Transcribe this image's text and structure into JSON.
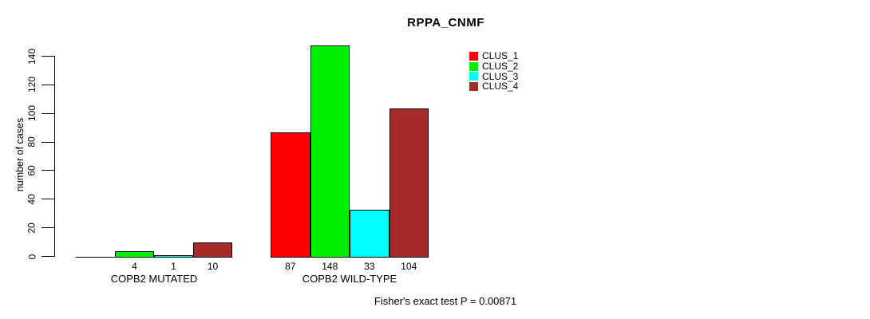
{
  "chart_data": {
    "type": "bar",
    "title": "RPPA_CNMF",
    "ylabel": "number of cases",
    "ylim": [
      0,
      140
    ],
    "yticks": [
      0,
      20,
      40,
      60,
      80,
      100,
      120,
      140
    ],
    "grid": false,
    "legend_position": "top-right-outside",
    "categories": [
      "COPB2 MUTATED",
      "COPB2 WILD-TYPE"
    ],
    "series": [
      {
        "name": "CLUS_1",
        "color": "#ff0000",
        "values": [
          0,
          87
        ]
      },
      {
        "name": "CLUS_2",
        "color": "#00ee00",
        "values": [
          4,
          148
        ]
      },
      {
        "name": "CLUS_3",
        "color": "#00ffff",
        "values": [
          1,
          33
        ]
      },
      {
        "name": "CLUS_4",
        "color": "#a52a2a",
        "values": [
          10,
          104
        ]
      }
    ],
    "bar_count_labels": [
      [
        "",
        "4",
        "1",
        "10"
      ],
      [
        "87",
        "148",
        "33",
        "104"
      ]
    ],
    "annotation": "Fisher's exact test P = 0.00871",
    "colors": {
      "axis": "#000000",
      "text": "#000000",
      "background": "#ffffff"
    }
  }
}
